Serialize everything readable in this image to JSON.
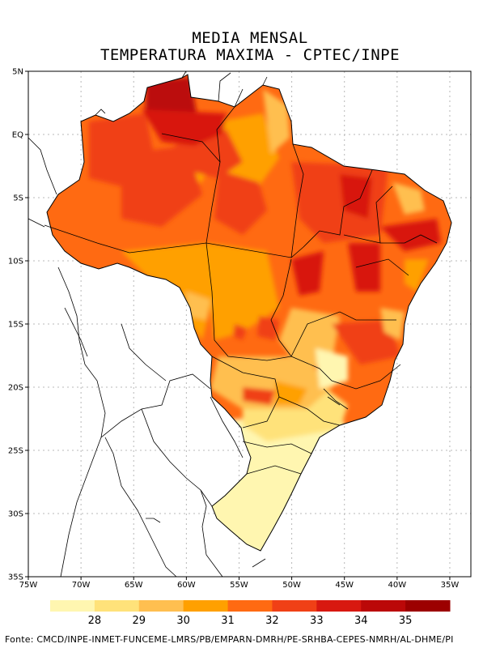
{
  "title_line1": "MEDIA MENSAL",
  "title_line2": "TEMPERATURA MAXIMA - CPTEC/INPE",
  "axes": {
    "lon_min": -75,
    "lon_max": -33,
    "lat_min": -35,
    "lat_max": 5,
    "x_ticks": [
      {
        "value": -75,
        "label": "75W"
      },
      {
        "value": -70,
        "label": "70W"
      },
      {
        "value": -65,
        "label": "65W"
      },
      {
        "value": -60,
        "label": "60W"
      },
      {
        "value": -55,
        "label": "55W"
      },
      {
        "value": -50,
        "label": "50W"
      },
      {
        "value": -45,
        "label": "45W"
      },
      {
        "value": -40,
        "label": "40W"
      },
      {
        "value": -35,
        "label": "35W"
      }
    ],
    "y_ticks": [
      {
        "value": 5,
        "label": "5N"
      },
      {
        "value": 0,
        "label": "EQ"
      },
      {
        "value": -5,
        "label": "5S"
      },
      {
        "value": -10,
        "label": "10S"
      },
      {
        "value": -15,
        "label": "15S"
      },
      {
        "value": -20,
        "label": "20S"
      },
      {
        "value": -25,
        "label": "25S"
      },
      {
        "value": -30,
        "label": "30S"
      },
      {
        "value": -35,
        "label": "35S"
      }
    ],
    "grid": true
  },
  "legend": {
    "colors": [
      "#fff6b0",
      "#ffe27a",
      "#ffbf50",
      "#ffa000",
      "#ff6a12",
      "#f04016",
      "#d81810",
      "#bb0808",
      "#9c0000"
    ],
    "labels": [
      "28",
      "29",
      "30",
      "31",
      "32",
      "33",
      "34",
      "35"
    ]
  },
  "source": "Fonte: CMCD/INPE-INMET-FUNCEME-LMRS/PB/EMPARN-DMRH/PE-SRHBA-CEPES-NMRH/AL-DHME/PI"
}
